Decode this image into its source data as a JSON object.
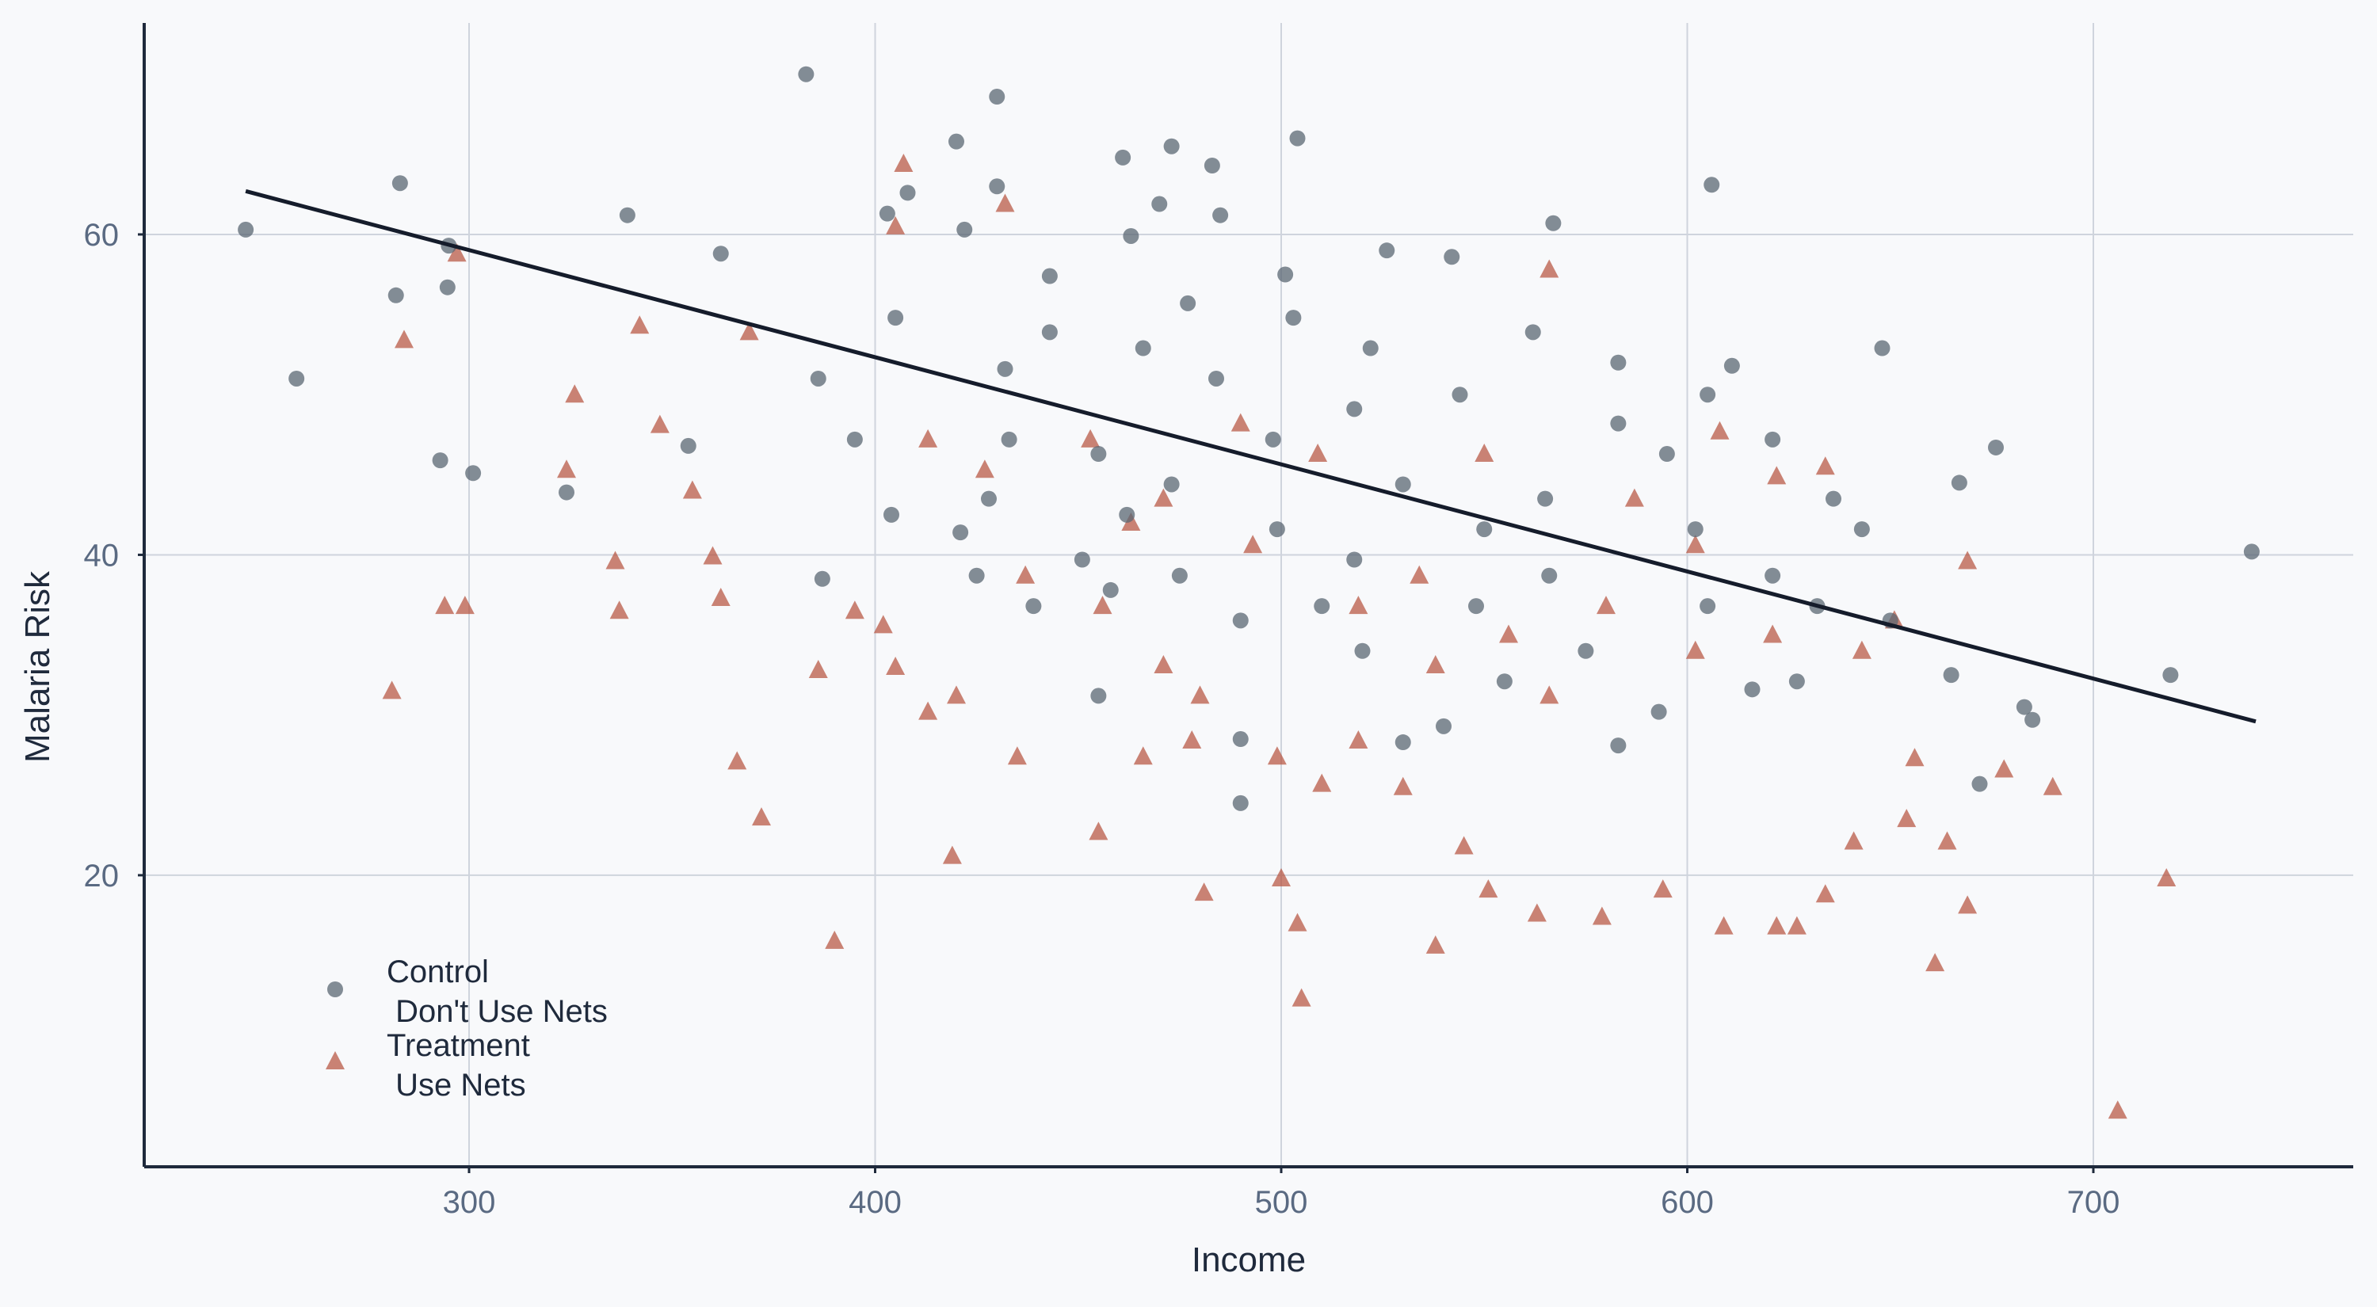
{
  "chart_data": {
    "type": "scatter",
    "title": "",
    "xlabel": "Income",
    "ylabel": "Malaria Risk",
    "xlim": [
      220,
      764
    ],
    "ylim": [
      1.8,
      73.2
    ],
    "xticks": [
      300,
      400,
      500,
      600,
      700
    ],
    "yticks": [
      20,
      40,
      60
    ],
    "grid": true,
    "legend_position": "bottom-left",
    "colors": {
      "control": "#5b6773",
      "treatment": "#b5503a",
      "line": "#151c2b",
      "grid": "#cfd4dd",
      "axis": "#1f2a3c"
    },
    "series": [
      {
        "name": "Control\n Don't Use Nets",
        "label_line1": "Control",
        "label_line2": " Don't Use Nets",
        "marker": "circle",
        "points": [
          [
            245,
            60.3
          ],
          [
            257.5,
            51
          ],
          [
            283,
            63.2
          ],
          [
            282,
            56.2
          ],
          [
            295,
            59.3
          ],
          [
            294.7,
            56.7
          ],
          [
            292.9,
            45.9
          ],
          [
            301,
            45.1
          ],
          [
            324,
            43.9
          ],
          [
            339,
            61.2
          ],
          [
            362,
            58.8
          ],
          [
            354,
            46.8
          ],
          [
            383,
            70
          ],
          [
            386,
            51
          ],
          [
            403,
            61.3
          ],
          [
            408,
            62.6
          ],
          [
            420,
            65.8
          ],
          [
            422,
            60.3
          ],
          [
            430,
            68.6
          ],
          [
            430,
            63
          ],
          [
            432,
            51.6
          ],
          [
            443,
            57.4
          ],
          [
            461,
            64.8
          ],
          [
            473,
            65.5
          ],
          [
            483,
            64.3
          ],
          [
            470,
            61.9
          ],
          [
            504,
            66
          ],
          [
            463,
            59.9
          ],
          [
            485,
            61.2
          ],
          [
            501,
            57.5
          ],
          [
            526,
            59
          ],
          [
            542,
            58.6
          ],
          [
            567,
            60.7
          ],
          [
            606,
            63.1
          ],
          [
            611,
            51.8
          ],
          [
            648,
            52.9
          ],
          [
            665,
            32.5
          ],
          [
            667,
            44.5
          ],
          [
            676,
            46.7
          ],
          [
            719,
            32.5
          ],
          [
            739,
            40.2
          ],
          [
            683,
            30.5
          ],
          [
            672,
            25.7
          ],
          [
            685,
            29.7
          ],
          [
            387,
            38.5
          ],
          [
            395,
            47.2
          ],
          [
            421,
            41.4
          ],
          [
            433,
            47.2
          ],
          [
            455,
            46.3
          ],
          [
            462,
            42.5
          ],
          [
            484,
            51
          ],
          [
            498,
            47.2
          ],
          [
            518,
            49.1
          ],
          [
            530,
            44.4
          ],
          [
            550,
            41.6
          ],
          [
            565,
            43.5
          ],
          [
            583,
            48.2
          ],
          [
            595,
            46.3
          ],
          [
            602,
            41.6
          ],
          [
            621,
            38.7
          ],
          [
            632,
            36.8
          ],
          [
            643,
            41.6
          ],
          [
            650,
            35.9
          ],
          [
            593,
            30.2
          ],
          [
            575,
            34
          ],
          [
            555,
            32.1
          ],
          [
            540,
            29.3
          ],
          [
            520,
            34
          ],
          [
            510,
            36.8
          ],
          [
            490,
            35.9
          ],
          [
            475,
            38.7
          ],
          [
            458,
            37.8
          ],
          [
            439,
            36.8
          ],
          [
            455,
            31.2
          ],
          [
            490,
            24.5
          ],
          [
            490,
            28.5
          ],
          [
            530,
            28.3
          ],
          [
            583,
            28.1
          ],
          [
            428,
            43.5
          ],
          [
            405,
            54.8
          ],
          [
            443,
            53.9
          ],
          [
            466,
            52.9
          ],
          [
            477,
            55.7
          ],
          [
            503,
            54.8
          ],
          [
            522,
            52.9
          ],
          [
            544,
            50
          ],
          [
            562,
            53.9
          ],
          [
            583,
            52
          ],
          [
            605,
            50
          ],
          [
            621,
            47.2
          ],
          [
            636,
            43.5
          ],
          [
            605,
            36.8
          ],
          [
            616,
            31.6
          ],
          [
            627,
            32.1
          ],
          [
            566,
            38.7
          ],
          [
            548,
            36.8
          ],
          [
            518,
            39.7
          ],
          [
            499,
            41.6
          ],
          [
            473,
            44.4
          ],
          [
            451,
            39.7
          ],
          [
            425,
            38.7
          ],
          [
            404,
            42.5
          ]
        ]
      },
      {
        "name": "Treatment\n Use Nets",
        "label_line1": "Treatment",
        "label_line2": " Use Nets",
        "marker": "triangle",
        "points": [
          [
            281,
            31.5
          ],
          [
            284,
            53.4
          ],
          [
            294,
            36.8
          ],
          [
            299,
            36.8
          ],
          [
            297,
            58.8
          ],
          [
            324,
            45.3
          ],
          [
            326,
            50
          ],
          [
            336,
            39.6
          ],
          [
            337,
            36.5
          ],
          [
            342,
            54.3
          ],
          [
            347,
            48.1
          ],
          [
            355,
            44
          ],
          [
            360,
            39.9
          ],
          [
            362,
            37.3
          ],
          [
            366,
            27.1
          ],
          [
            372,
            23.6
          ],
          [
            369,
            53.9
          ],
          [
            386,
            32.8
          ],
          [
            390,
            15.9
          ],
          [
            395,
            36.5
          ],
          [
            405,
            60.5
          ],
          [
            407,
            64.4
          ],
          [
            402,
            35.6
          ],
          [
            419,
            21.2
          ],
          [
            432,
            61.9
          ],
          [
            420,
            31.2
          ],
          [
            435,
            27.4
          ],
          [
            455,
            22.7
          ],
          [
            463,
            42
          ],
          [
            471,
            33.1
          ],
          [
            478,
            28.4
          ],
          [
            481,
            18.9
          ],
          [
            500,
            19.8
          ],
          [
            504,
            17
          ],
          [
            505,
            12.3
          ],
          [
            510,
            25.7
          ],
          [
            519,
            28.4
          ],
          [
            538,
            33.1
          ],
          [
            538,
            15.6
          ],
          [
            545,
            21.8
          ],
          [
            551,
            19.1
          ],
          [
            563,
            17.6
          ],
          [
            566,
            57.8
          ],
          [
            579,
            17.4
          ],
          [
            594,
            19.1
          ],
          [
            609,
            16.8
          ],
          [
            608,
            47.7
          ],
          [
            622,
            16.8
          ],
          [
            627,
            16.8
          ],
          [
            634,
            18.8
          ],
          [
            641,
            22.1
          ],
          [
            643,
            34
          ],
          [
            654,
            23.5
          ],
          [
            656,
            27.3
          ],
          [
            669,
            39.6
          ],
          [
            669,
            18.1
          ],
          [
            664,
            22.1
          ],
          [
            661,
            14.5
          ],
          [
            678,
            26.6
          ],
          [
            690,
            25.5
          ],
          [
            718,
            19.8
          ],
          [
            706,
            5.3
          ],
          [
            634,
            45.5
          ],
          [
            622,
            44.9
          ],
          [
            456,
            36.8
          ],
          [
            437,
            38.7
          ],
          [
            471,
            43.5
          ],
          [
            493,
            40.6
          ],
          [
            519,
            36.8
          ],
          [
            534,
            38.7
          ],
          [
            556,
            35
          ],
          [
            580,
            36.8
          ],
          [
            602,
            34
          ],
          [
            621,
            35
          ],
          [
            413,
            47.2
          ],
          [
            427,
            45.3
          ],
          [
            453,
            47.2
          ],
          [
            490,
            48.2
          ],
          [
            509,
            46.3
          ],
          [
            550,
            46.3
          ],
          [
            566,
            31.2
          ],
          [
            530,
            25.5
          ],
          [
            499,
            27.4
          ],
          [
            480,
            31.2
          ],
          [
            466,
            27.4
          ],
          [
            413,
            30.2
          ],
          [
            405,
            33
          ],
          [
            587,
            43.5
          ],
          [
            602,
            40.6
          ],
          [
            651,
            35.9
          ]
        ]
      }
    ],
    "fit_line": {
      "x": [
        245,
        740
      ],
      "y": [
        62.7,
        29.6
      ]
    }
  }
}
